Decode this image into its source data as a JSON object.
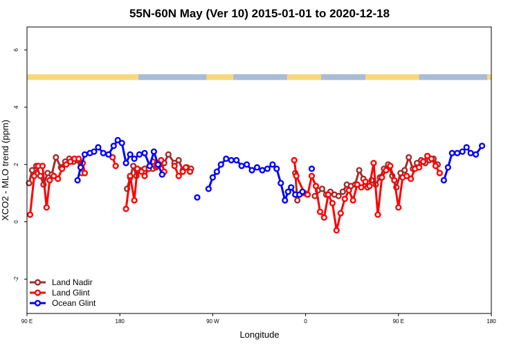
{
  "chart_data": {
    "type": "line",
    "title": "55N-60N May (Ver 10)   2015-01-01 to 2020-12-18",
    "xlabel": "Longitude",
    "ylabel": "XCO2 - MLO trend (ppm)",
    "xlim": [
      -180,
      270
    ],
    "ylim": [
      -3.2,
      6.8
    ],
    "x_ticks": [
      {
        "value": -180,
        "label": "90 E"
      },
      {
        "value": -90,
        "label": "180"
      },
      {
        "value": 0,
        "label": "90 W"
      },
      {
        "value": 90,
        "label": "0"
      },
      {
        "value": 180,
        "label": "90 E"
      },
      {
        "value": 270,
        "label": "180"
      }
    ],
    "y_ticks": [
      {
        "value": -2,
        "label": "-2"
      },
      {
        "value": 0,
        "label": "0"
      },
      {
        "value": 2,
        "label": "2"
      },
      {
        "value": 4,
        "label": "4"
      },
      {
        "value": 6,
        "label": "6"
      }
    ],
    "land_mask_strip": {
      "y_range": [
        4.95,
        5.15
      ],
      "ocean_color": "#a8bcd8",
      "land_color": "#f7d87c"
    },
    "grid": false,
    "legend_position": "bottom-left",
    "series": [
      {
        "name": "Land Nadir",
        "color": "#a52a2a",
        "points": [
          [
            -178,
            1.35
          ],
          [
            -175,
            1.8
          ],
          [
            -171,
            1.95
          ],
          [
            -167,
            1.6
          ],
          [
            -164,
            1.3
          ],
          [
            -160,
            1.7
          ],
          [
            -156,
            1.65
          ],
          [
            -152,
            2.25
          ],
          [
            -147,
            1.9
          ],
          [
            -143,
            2.1
          ],
          [
            -139,
            2.2
          ],
          [
            -135,
            2.1
          ],
          [
            -131,
            2.15
          ],
          [
            -127,
            1.7
          ],
          [
            -83,
            1.15
          ],
          [
            -80,
            1.55
          ],
          [
            -77,
            1.95
          ],
          [
            -74,
            1.6
          ],
          [
            -70,
            1.8
          ],
          [
            -66,
            1.85
          ],
          [
            -62,
            1.9
          ],
          [
            -58,
            1.85
          ],
          [
            -55,
            1.9
          ],
          [
            -51,
            2.0
          ],
          [
            -47,
            2.05
          ],
          [
            -43,
            2.35
          ],
          [
            -37,
            2.05
          ],
          [
            -33,
            2.15
          ],
          [
            -29,
            1.8
          ],
          [
            -25,
            1.9
          ],
          [
            -21,
            1.85
          ],
          [
            80,
            1.7
          ],
          [
            82,
            0.75
          ],
          [
            99,
            0.9
          ],
          [
            102,
            1.1
          ],
          [
            106,
            1.15
          ],
          [
            110,
            0.95
          ],
          [
            114,
            1.05
          ],
          [
            118,
            0.95
          ],
          [
            122,
            0.9
          ],
          [
            126,
            1.05
          ],
          [
            130,
            1.3
          ],
          [
            134,
            1.25
          ],
          [
            138,
            1.3
          ],
          [
            142,
            1.8
          ],
          [
            146,
            1.5
          ],
          [
            150,
            1.2
          ],
          [
            154,
            1.45
          ],
          [
            158,
            1.3
          ],
          [
            162,
            1.55
          ],
          [
            166,
            1.85
          ],
          [
            170,
            2.0
          ],
          [
            174,
            1.6
          ],
          [
            178,
            1.2
          ],
          [
            182,
            1.7
          ],
          [
            186,
            1.8
          ],
          [
            190,
            2.25
          ],
          [
            194,
            1.85
          ],
          [
            198,
            2.05
          ],
          [
            202,
            2.15
          ],
          [
            206,
            2.05
          ],
          [
            210,
            2.15
          ],
          [
            214,
            2.2
          ],
          [
            218,
            2.0
          ]
        ]
      },
      {
        "name": "Land Glint",
        "color": "#ff0000",
        "points": [
          [
            -177,
            0.25
          ],
          [
            -173,
            1.6
          ],
          [
            -169,
            1.95
          ],
          [
            -165,
            1.95
          ],
          [
            -161,
            0.5
          ],
          [
            -158,
            1.45
          ],
          [
            -154,
            1.6
          ],
          [
            -150,
            1.5
          ],
          [
            -146,
            1.85
          ],
          [
            -142,
            2.0
          ],
          [
            -138,
            2.1
          ],
          [
            -134,
            2.2
          ],
          [
            -130,
            2.2
          ],
          [
            -126,
            2.05
          ],
          [
            -124,
            1.7
          ],
          [
            -97,
            2.25
          ],
          [
            -94,
            1.95
          ],
          [
            -84,
            0.45
          ],
          [
            -80,
            1.6
          ],
          [
            -76,
            0.75
          ],
          [
            -73,
            1.85
          ],
          [
            -69,
            1.75
          ],
          [
            -66,
            1.6
          ],
          [
            -62,
            1.85
          ],
          [
            -58,
            2.1
          ],
          [
            -54,
            1.95
          ],
          [
            -50,
            2.15
          ],
          [
            -47,
            1.75
          ],
          [
            -37,
            1.95
          ],
          [
            -33,
            1.6
          ],
          [
            -29,
            1.75
          ],
          [
            -26,
            1.9
          ],
          [
            -22,
            1.75
          ],
          [
            79,
            2.15
          ],
          [
            81,
            1.6
          ],
          [
            89,
            1.0
          ],
          [
            92,
            0.95
          ],
          [
            96,
            1.6
          ],
          [
            100,
            1.25
          ],
          [
            104,
            0.35
          ],
          [
            108,
            0.15
          ],
          [
            112,
            0.95
          ],
          [
            116,
            0.65
          ],
          [
            120,
            -0.3
          ],
          [
            124,
            0.3
          ],
          [
            128,
            0.8
          ],
          [
            132,
            1.1
          ],
          [
            136,
            0.75
          ],
          [
            140,
            1.3
          ],
          [
            144,
            1.2
          ],
          [
            148,
            1.4
          ],
          [
            152,
            1.25
          ],
          [
            156,
            2.05
          ],
          [
            160,
            0.25
          ],
          [
            164,
            1.55
          ],
          [
            168,
            1.8
          ],
          [
            172,
            1.95
          ],
          [
            176,
            1.45
          ],
          [
            180,
            0.5
          ],
          [
            184,
            1.55
          ],
          [
            188,
            1.6
          ],
          [
            192,
            1.5
          ],
          [
            196,
            1.85
          ],
          [
            200,
            1.9
          ],
          [
            204,
            2.1
          ],
          [
            208,
            2.3
          ],
          [
            212,
            2.2
          ],
          [
            216,
            1.95
          ],
          [
            220,
            1.7
          ]
        ]
      },
      {
        "name": "Ocean Glint",
        "color": "#0000ff",
        "points": [
          [
            -131,
            1.45
          ],
          [
            -128,
            1.9
          ],
          [
            -124,
            2.35
          ],
          [
            -119,
            2.4
          ],
          [
            -115,
            2.45
          ],
          [
            -111,
            2.6
          ],
          [
            -106,
            2.4
          ],
          [
            -101,
            2.35
          ],
          [
            -96,
            2.65
          ],
          [
            -92,
            2.85
          ],
          [
            -88,
            2.75
          ],
          [
            -84,
            2.05
          ],
          [
            -80,
            2.35
          ],
          [
            -76,
            2.2
          ],
          [
            -71,
            2.35
          ],
          [
            -66,
            2.4
          ],
          [
            -61,
            1.95
          ],
          [
            -57,
            2.45
          ],
          [
            -53,
            2.0
          ],
          [
            -49,
            1.65
          ],
          [
            -15,
            0.85
          ],
          [
            -4,
            1.15
          ],
          [
            0,
            1.55
          ],
          [
            4,
            1.75
          ],
          [
            8,
            2.0
          ],
          [
            13,
            2.2
          ],
          [
            18,
            2.15
          ],
          [
            23,
            2.15
          ],
          [
            28,
            1.95
          ],
          [
            33,
            2.0
          ],
          [
            38,
            1.8
          ],
          [
            43,
            1.9
          ],
          [
            48,
            1.8
          ],
          [
            53,
            1.85
          ],
          [
            58,
            2.0
          ],
          [
            62,
            1.85
          ],
          [
            66,
            1.35
          ],
          [
            70,
            0.75
          ],
          [
            73,
            1.05
          ],
          [
            76,
            1.2
          ],
          [
            80,
            0.95
          ],
          [
            84,
            0.95
          ],
          [
            87,
            1.05
          ],
          [
            96,
            1.85
          ],
          [
            224,
            1.45
          ],
          [
            228,
            1.9
          ],
          [
            232,
            2.4
          ],
          [
            237,
            2.4
          ],
          [
            242,
            2.45
          ],
          [
            246,
            2.6
          ],
          [
            250,
            2.4
          ],
          [
            255,
            2.35
          ],
          [
            261,
            2.65
          ]
        ]
      }
    ]
  }
}
